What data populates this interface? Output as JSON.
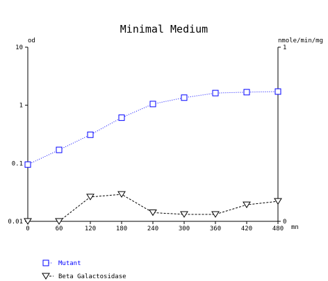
{
  "chart_data": {
    "type": "line",
    "title": "Minimal Medium",
    "xlabel": "mn",
    "ylabel_left": "od",
    "ylabel_right": "nmole/min/mg",
    "x_ticks": [
      0,
      60,
      120,
      180,
      240,
      300,
      360,
      420,
      480
    ],
    "xlim": [
      0,
      480
    ],
    "y_left_scale": "log",
    "y_left_lim": [
      0.01,
      10
    ],
    "y_left_ticks": [
      "0.01",
      "0.1",
      "1",
      "10"
    ],
    "y_right_scale": "linear",
    "y_right_lim": [
      0,
      1
    ],
    "y_right_ticks": [
      "0",
      "1"
    ],
    "grid": false,
    "legend_position": "bottom-left",
    "series": [
      {
        "name": "Mutant",
        "axis": "left",
        "marker": "square",
        "color": "#0000ff",
        "line_style": "dotted",
        "x": [
          0,
          60,
          120,
          180,
          240,
          300,
          360,
          420,
          480
        ],
        "values": [
          0.095,
          0.17,
          0.31,
          0.61,
          1.05,
          1.35,
          1.62,
          1.68,
          1.72
        ]
      },
      {
        "name": "Beta Galactosidase",
        "axis": "right",
        "marker": "triangle-down",
        "color": "#000000",
        "line_style": "dashed",
        "x": [
          0,
          60,
          120,
          180,
          240,
          300,
          360,
          420,
          480
        ],
        "values": [
          0.0,
          0.0,
          0.14,
          0.155,
          0.05,
          0.04,
          0.04,
          0.095,
          0.115
        ]
      }
    ]
  }
}
